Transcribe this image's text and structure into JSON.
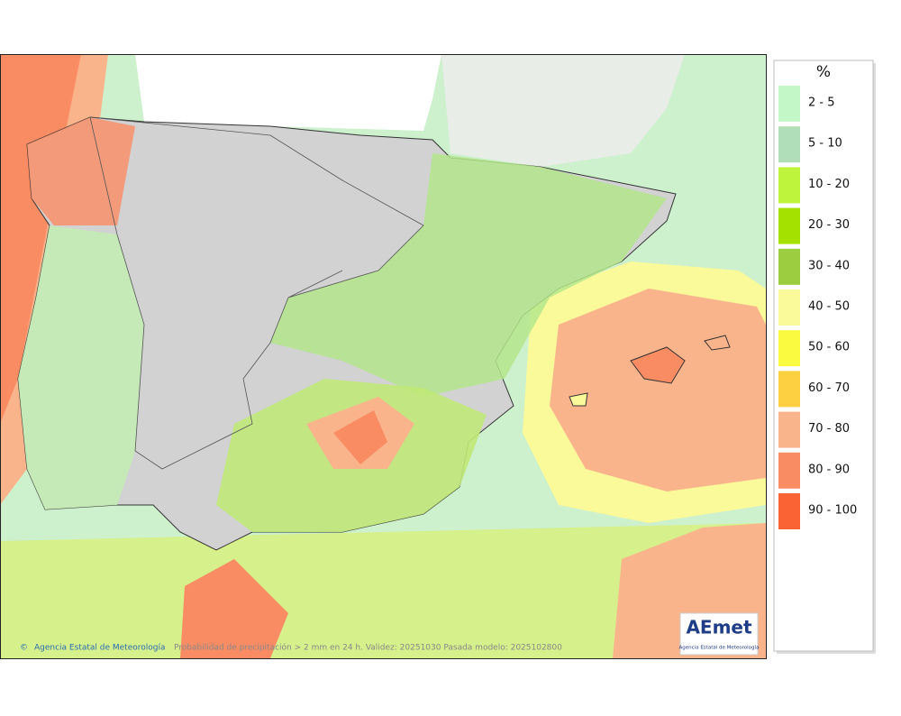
{
  "legend": {
    "title": "%",
    "items": [
      {
        "label": "2 - 5",
        "color": "#c4f7c8"
      },
      {
        "label": "5 - 10",
        "color": "#b0deb8"
      },
      {
        "label": "10 - 20",
        "color": "#bef43c"
      },
      {
        "label": "20 - 30",
        "color": "#a4e000"
      },
      {
        "label": "30 - 40",
        "color": "#9ccc40"
      },
      {
        "label": "40 - 50",
        "color": "#fafa9a"
      },
      {
        "label": "50 - 60",
        "color": "#fafa40"
      },
      {
        "label": "60 - 70",
        "color": "#fcd040"
      },
      {
        "label": "70 - 80",
        "color": "#fab48c"
      },
      {
        "label": "80 - 90",
        "color": "#fa8c64"
      },
      {
        "label": "90 - 100",
        "color": "#fa6434"
      }
    ]
  },
  "footer": {
    "credit": "Agencia Estatal de Meteorología",
    "caption": "Probabilidad de precipitación > 2 mm en 24 h. Validez: 20251030 Pasada modelo: 2025102800"
  },
  "logo": {
    "name": "AEmet",
    "subtitle": "Agencia Estatal de Meteorología"
  }
}
